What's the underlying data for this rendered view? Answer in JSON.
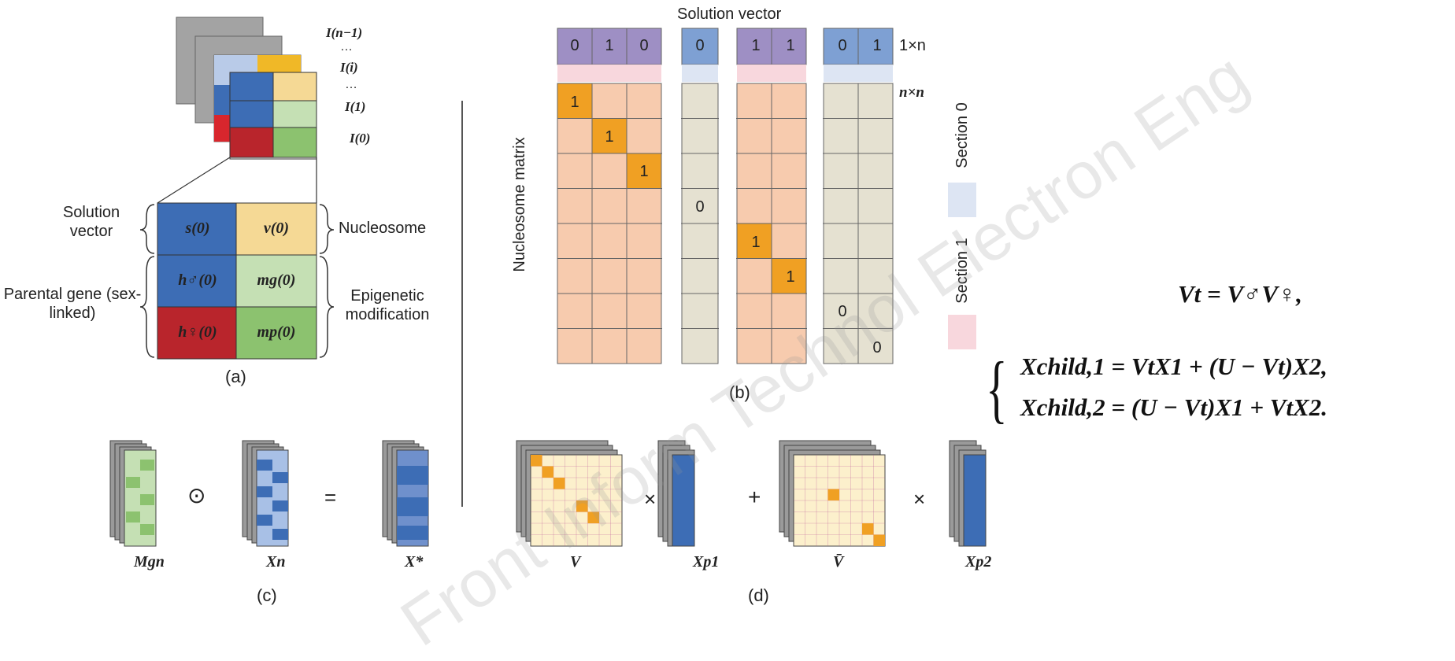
{
  "panel_a": {
    "layers": [
      "I(n−1)",
      "…",
      "I(i)",
      "…",
      "I(1)",
      "I(0)"
    ],
    "left_labels": [
      "Solution vector",
      "Parental gene (sex-linked)"
    ],
    "right_labels": [
      "Nucleosome",
      "Epigenetic modification"
    ],
    "cells": [
      "s(0)",
      "v(0)",
      "h♂(0)",
      "mg(0)",
      "h♀(0)",
      "mp(0)"
    ],
    "caption": "(a)"
  },
  "panel_b": {
    "title": "Solution vector",
    "vector_label": "1×n",
    "matrix_label": "n×n",
    "row_axis_label": "Nucleosome matrix",
    "solution_vector": [
      "0",
      "1",
      "0",
      "0",
      "1",
      "1",
      "0",
      "1"
    ],
    "diagonal": [
      "1",
      "1",
      "1",
      "0",
      "1",
      "1",
      "0",
      "0"
    ],
    "legend": [
      "Section 0",
      "Section 1"
    ],
    "caption": "(b)"
  },
  "panel_c": {
    "operator": "⊙",
    "equals": "=",
    "labels": [
      "Mgn",
      "Xn",
      "X*"
    ],
    "caption": "(c)"
  },
  "panel_d": {
    "times": "×",
    "plus": "+",
    "labels": [
      "V",
      "Xp1",
      "V̄",
      "Xp2"
    ],
    "caption": "(d)"
  },
  "equations": {
    "vt": "Vt = V♂V♀,",
    "x1": "Xchild,1 = VtX1 + (U − Vt)X2,",
    "x2": "Xchild,2 = (U − Vt)X1 + VtX2."
  },
  "watermark": "Front Inform Technol Electron Eng",
  "colors": {
    "blue": "#3d6db5",
    "yellow": "#f5d995",
    "light_green": "#c5e0b4",
    "green": "#8cc26f",
    "red": "#b9252c",
    "orange": "#f0a023",
    "salmon": "#f7cbae",
    "purple": "#9e8fc4",
    "pink": "#f8d7dd",
    "slate_blue": "#7ea0d3",
    "pale_blue": "#dde5f3",
    "gray_beige": "#e5e1d1",
    "cream": "#fcf0cc"
  }
}
